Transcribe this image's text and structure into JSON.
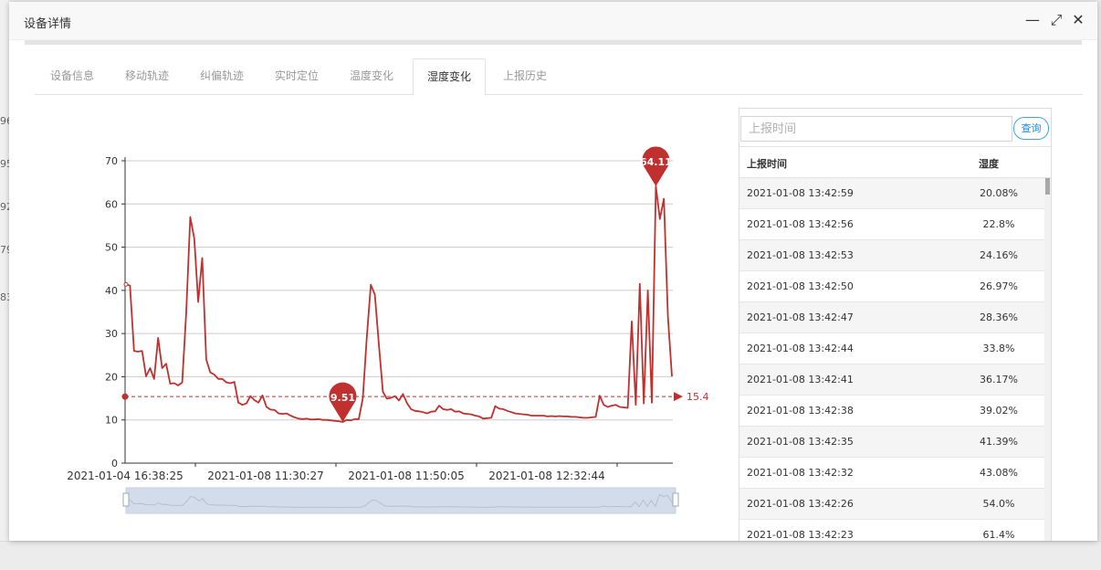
{
  "background": {
    "fragments": [
      "96",
      "95",
      "92",
      "79",
      "83"
    ]
  },
  "window": {
    "title": "设备详情",
    "controls": {
      "minimize": "—",
      "maximize": "⤢",
      "close": "✕"
    }
  },
  "tabs": [
    {
      "label": "设备信息",
      "active": false
    },
    {
      "label": "移动轨迹",
      "active": false
    },
    {
      "label": "纠偏轨迹",
      "active": false
    },
    {
      "label": "实时定位",
      "active": false
    },
    {
      "label": "温度变化",
      "active": false
    },
    {
      "label": "湿度变化",
      "active": true
    },
    {
      "label": "上报历史",
      "active": false
    }
  ],
  "colors": {
    "line": "#c0302e",
    "accent": "#1e88e5",
    "slider_fill": "#d3dcea"
  },
  "chart_data": {
    "type": "line",
    "ylim": [
      0,
      70
    ],
    "yticks": [
      0,
      10,
      20,
      30,
      40,
      50,
      60,
      70
    ],
    "xtick_labels": [
      "2021-01-04 16:38:25",
      "2021-01-08 11:30:27",
      "2021-01-08 11:50:05",
      "2021-01-08 12:32:44"
    ],
    "series": [
      {
        "values": [
          41.4,
          41.1,
          26,
          25.8,
          26,
          20.1,
          22,
          19.5,
          29,
          22,
          23,
          18.4,
          18.5,
          18,
          18.7,
          35,
          57,
          52,
          37.3,
          47.5,
          24,
          21,
          20.5,
          19.5,
          19.5,
          18.7,
          18.5,
          18.8,
          14,
          13.5,
          13.8,
          15.5,
          14.6,
          14,
          15.7,
          13,
          12.4,
          12.3,
          11.5,
          11.4,
          11.5,
          11,
          10.6,
          10.3,
          10.2,
          10.3,
          10.1,
          10.1,
          10.2,
          10,
          10,
          9.9,
          9.8,
          9.7,
          9.51,
          10,
          9.9,
          10.2,
          10.2,
          15,
          29.2,
          41.3,
          39,
          27.5,
          16.5,
          14.9,
          15.1,
          15.5,
          14.5,
          16,
          13.9,
          12.5,
          12.1,
          12,
          11.8,
          11.5,
          11.9,
          12,
          13.3,
          12.5,
          12.3,
          12.5,
          11.9,
          12,
          11.5,
          11.4,
          11.3,
          11,
          10.8,
          10.3,
          10.4,
          10.5,
          13.2,
          12.6,
          12.5,
          12.1,
          11.8,
          11.5,
          11.4,
          11.3,
          11.2,
          11,
          11,
          11,
          11,
          10.8,
          10.9,
          10.8,
          10.9,
          10.8,
          10.8,
          10.7,
          10.7,
          10.6,
          10.5,
          10.5,
          10.6,
          10.7,
          15.6,
          13.5,
          13,
          13.3,
          13.5,
          13,
          12.9,
          12.8,
          32.8,
          13.5,
          41.5,
          13.8,
          40,
          14,
          64.11,
          56.5,
          61.2,
          34,
          20.08
        ]
      }
    ],
    "mark_points": [
      {
        "label": "64.11",
        "type": "max"
      },
      {
        "label": "9.51",
        "type": "min"
      }
    ],
    "mark_line": {
      "value": 15.4,
      "label": "15.4",
      "type": "average"
    }
  },
  "panel": {
    "search_placeholder": "上报时间",
    "search_button": "查询",
    "columns": {
      "time": "上报时间",
      "humidity": "湿度"
    },
    "rows": [
      {
        "time": "2021-01-08 13:42:59",
        "humidity": "20.08%"
      },
      {
        "time": "2021-01-08 13:42:56",
        "humidity": "22.8%"
      },
      {
        "time": "2021-01-08 13:42:53",
        "humidity": "24.16%"
      },
      {
        "time": "2021-01-08 13:42:50",
        "humidity": "26.97%"
      },
      {
        "time": "2021-01-08 13:42:47",
        "humidity": "28.36%"
      },
      {
        "time": "2021-01-08 13:42:44",
        "humidity": "33.8%"
      },
      {
        "time": "2021-01-08 13:42:41",
        "humidity": "36.17%"
      },
      {
        "time": "2021-01-08 13:42:38",
        "humidity": "39.02%"
      },
      {
        "time": "2021-01-08 13:42:35",
        "humidity": "41.39%"
      },
      {
        "time": "2021-01-08 13:42:32",
        "humidity": "43.08%"
      },
      {
        "time": "2021-01-08 13:42:26",
        "humidity": "54.0%"
      },
      {
        "time": "2021-01-08 13:42:23",
        "humidity": "61.4%"
      }
    ]
  }
}
